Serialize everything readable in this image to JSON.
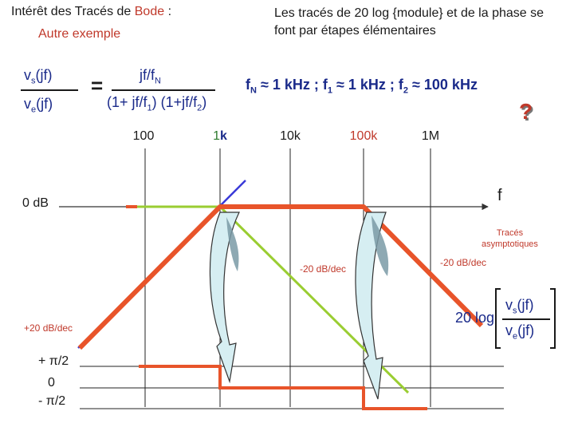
{
  "header": {
    "title_prefix": "Intérêt des Tracés de ",
    "title_bode": "Bode",
    "title_suffix": " :",
    "subtitle": "Autre exemple",
    "note": "Les tracés de 20 log {module} et de la phase se font par étapes élémentaires"
  },
  "formula": {
    "lhs_num": "v",
    "lhs_num_sub": "s",
    "lhs_num_tail": "(jf)",
    "lhs_den": "v",
    "lhs_den_sub": "e",
    "lhs_den_tail": "(jf)",
    "equals": "=",
    "rhs_num": "jf/f",
    "rhs_num_sub": "N",
    "rhs_den_a": "(1+ jf/f",
    "rhs_den_a_sub": "1",
    "rhs_den_b": ") (1+jf/f",
    "rhs_den_b_sub": "2",
    "rhs_den_c": ")"
  },
  "frequencies": {
    "fN_pre": "f",
    "fN_sub": "N",
    "fN_val": " ≈ 1 kHz  ;  f",
    "f1_sub": "1",
    "f1_val": " ≈ 1 kHz  ;  f",
    "f2_sub": "2",
    "f2_val": " ≈ 100 kHz"
  },
  "axis": {
    "ticks": [
      "100",
      "1",
      "k",
      "10k",
      "100k",
      "1M"
    ],
    "zero_db": "0 dB",
    "f": "f",
    "traces_1": "Tracés",
    "traces_2": "asymptotiques"
  },
  "slopes": {
    "minus20_a": "-20 dB/dec",
    "minus20_b": "-20 dB/dec",
    "plus20": "+20 dB/dec"
  },
  "log_label": {
    "prefix": "20 log",
    "num": "v",
    "num_sub": "s",
    "num_tail": "(jf)",
    "den": "v",
    "den_sub": "e",
    "den_tail": "(jf)"
  },
  "phase": {
    "plus": "+ π/2",
    "zero": "0",
    "minus": "- π/2"
  },
  "question_mark": "?",
  "colors": {
    "red_asymptote": "#e8542a",
    "green_asymptote": "#9acd32",
    "blue_asymptote": "#3a3ad8",
    "arrow_fill": "#d6eef2"
  }
}
